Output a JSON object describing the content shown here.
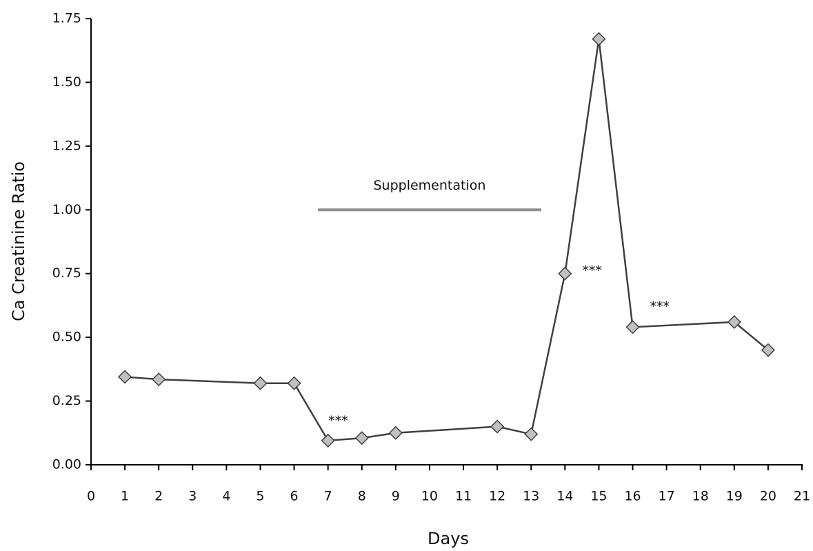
{
  "chart_data": {
    "type": "line",
    "xlabel": "Days",
    "ylabel": "Ca Creatinine Ratio",
    "x": [
      1,
      2,
      5,
      6,
      7,
      8,
      9,
      12,
      13,
      14,
      15,
      16,
      19,
      20
    ],
    "series": [
      {
        "color": "#404040",
        "marker_color": "#c0c0c0",
        "values": [
          0.345,
          0.335,
          0.32,
          0.32,
          0.095,
          0.105,
          0.125,
          0.15,
          0.12,
          0.75,
          1.67,
          0.54,
          0.56,
          0.45
        ]
      }
    ],
    "xlim": [
      0,
      21
    ],
    "xticks": [
      0,
      1,
      2,
      3,
      4,
      5,
      6,
      7,
      8,
      9,
      10,
      11,
      12,
      13,
      14,
      15,
      16,
      17,
      18,
      19,
      20,
      21
    ],
    "ylim": [
      0,
      1.75
    ],
    "yticks": [
      {
        "value": 0,
        "label": "0.00"
      },
      {
        "value": 0.25,
        "label": "0.25"
      },
      {
        "value": 0.5,
        "label": "0.50"
      },
      {
        "value": 0.75,
        "label": "0.75"
      },
      {
        "value": 1,
        "label": "1.00"
      },
      {
        "value": 1.25,
        "label": "1.25"
      },
      {
        "value": 1.5,
        "label": "1.50"
      },
      {
        "value": 1.75,
        "label": "1.75"
      }
    ],
    "grid": false,
    "period": {
      "label": "Supplementation",
      "x": [
        6.7,
        13.3
      ],
      "y": 1.0,
      "color": "#909090"
    },
    "annotations": [
      {
        "text": "***",
        "x": 7.3,
        "y": 0.17
      },
      {
        "text": "***",
        "x": 14.8,
        "y": 0.76
      },
      {
        "text": "***",
        "x": 16.8,
        "y": 0.62
      }
    ]
  }
}
